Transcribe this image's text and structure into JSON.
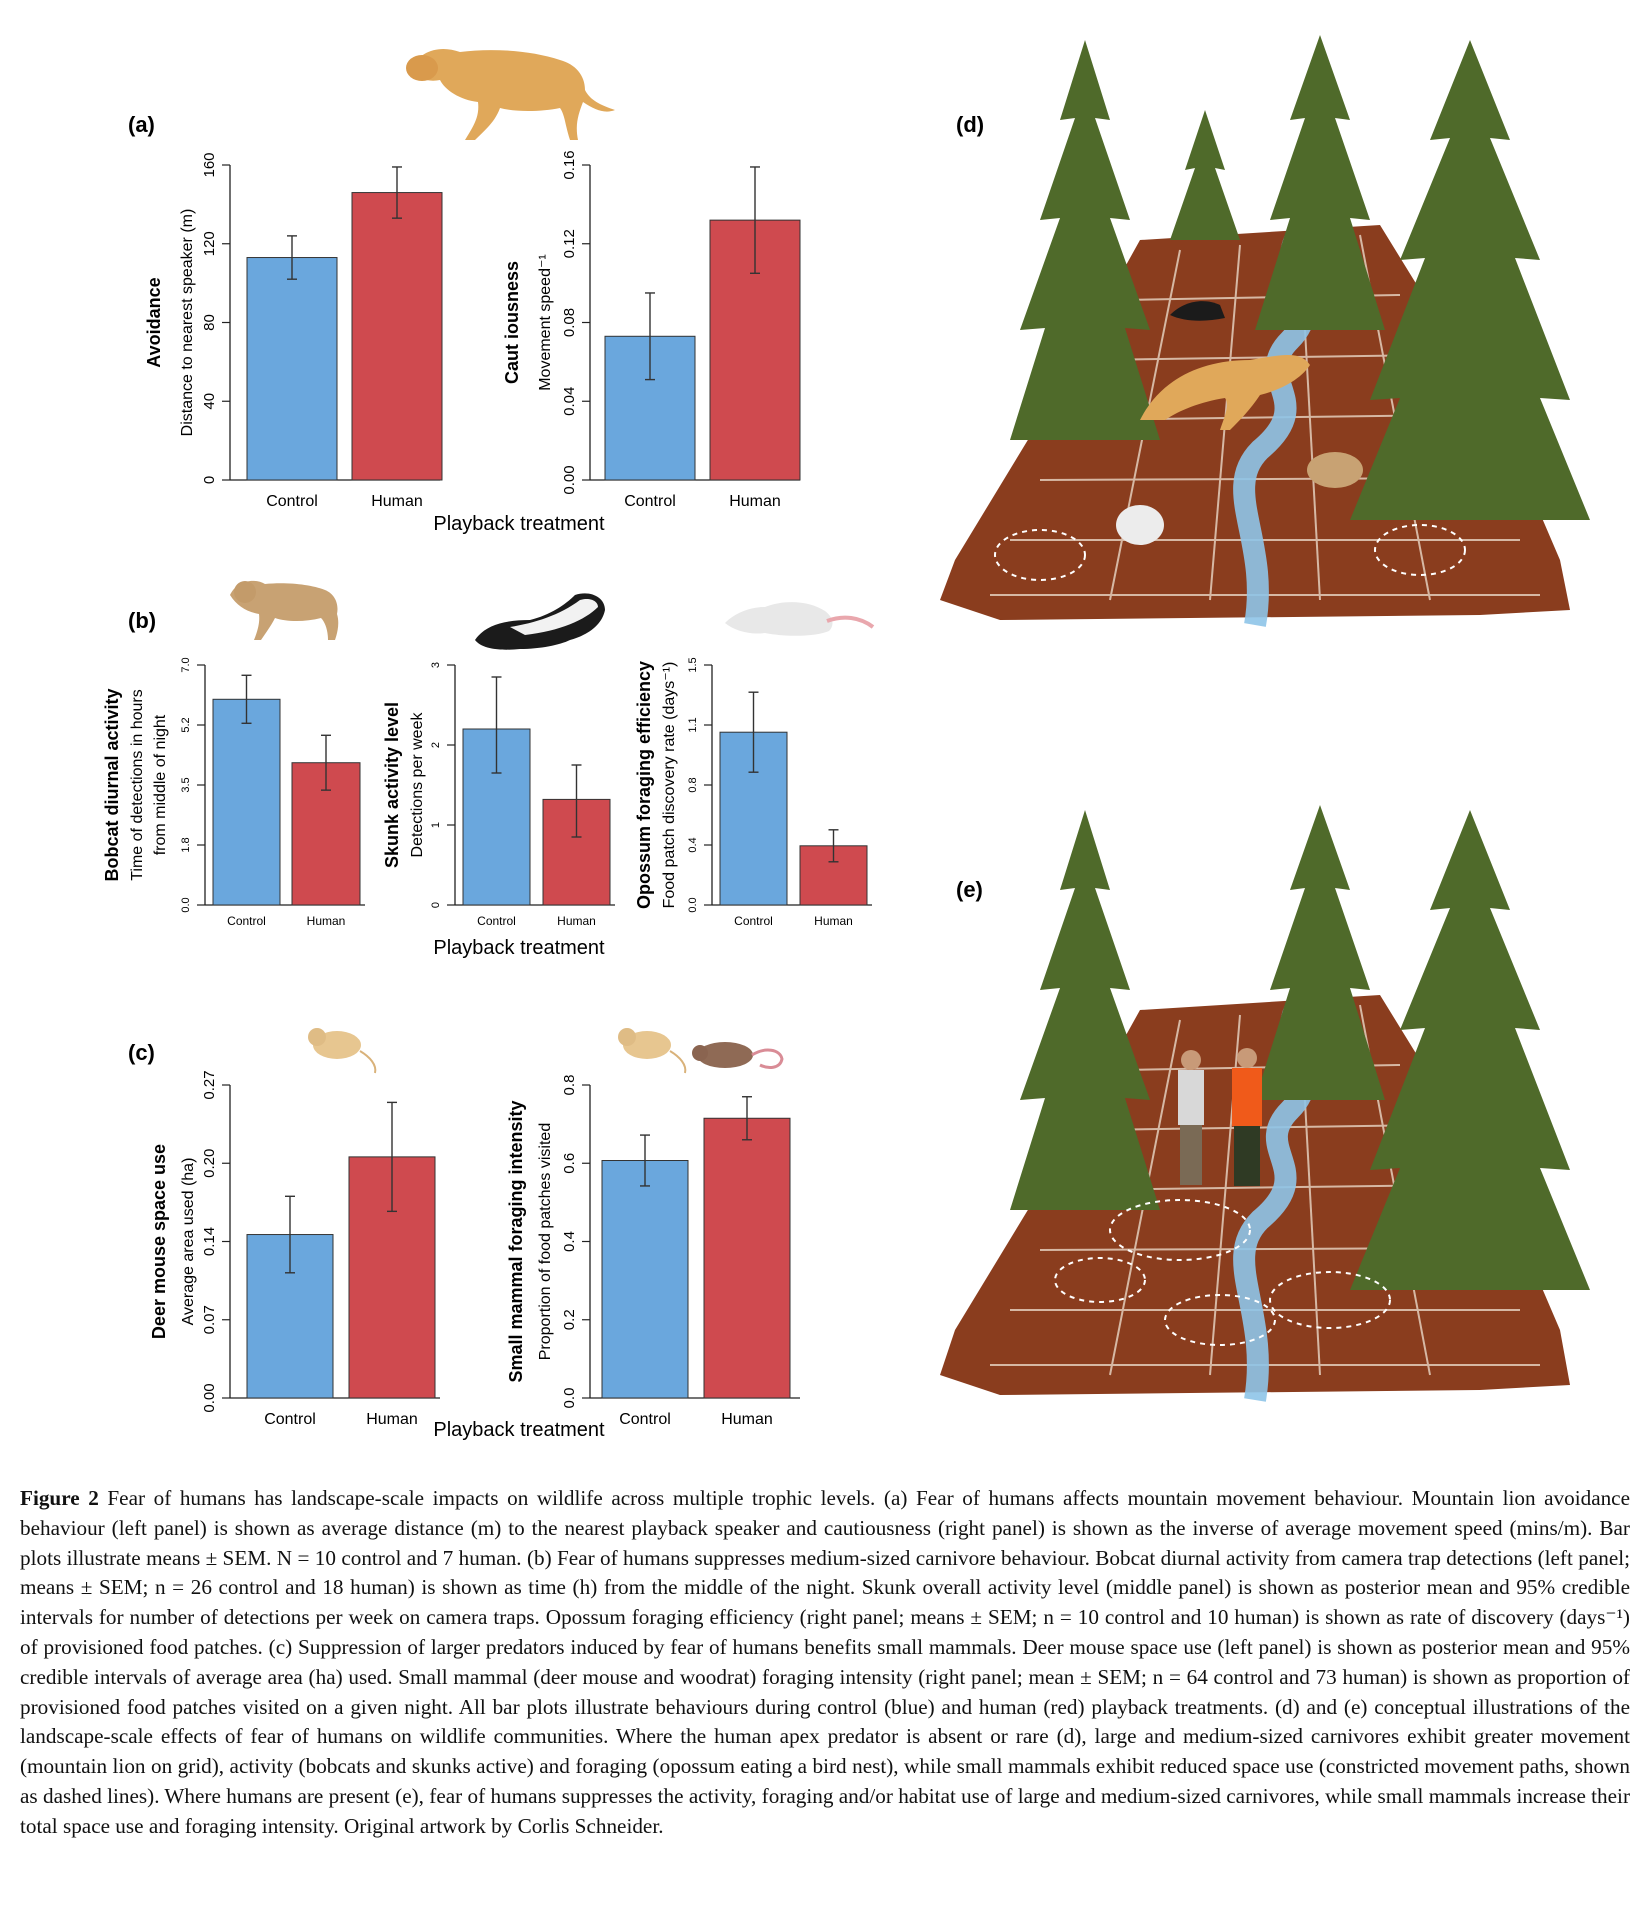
{
  "figure": {
    "panels": {
      "a": "(a)",
      "b": "(b)",
      "c": "(c)",
      "d": "(d)",
      "e": "(e)"
    },
    "xlabel": "Playback treatment",
    "colors": {
      "control": "#6aa7dd",
      "human": "#cf4a4f",
      "soil": "#8a3d1e",
      "tree": "#4f6a2a",
      "stream": "#8ec4e8"
    },
    "icons": [
      "mountain-lion-icon",
      "bobcat-icon",
      "skunk-icon",
      "opossum-icon",
      "deer-mouse-icon",
      "woodrat-icon"
    ]
  },
  "chart_data": [
    {
      "id": "a-left",
      "type": "bar",
      "categories": [
        "Control",
        "Human"
      ],
      "values": [
        113,
        146
      ],
      "errors": [
        11,
        13
      ],
      "ylabel_bold": "Avoidance",
      "ylabel": "Distance to nearest speaker (m)",
      "ylim": [
        0,
        160
      ],
      "yticks": [
        "0",
        "40",
        "80",
        "120",
        "160"
      ],
      "ytick_values": [
        0,
        40,
        80,
        120,
        160
      ]
    },
    {
      "id": "a-right",
      "type": "bar",
      "categories": [
        "Control",
        "Human"
      ],
      "values": [
        0.073,
        0.132
      ],
      "errors": [
        0.022,
        0.027
      ],
      "ylabel_bold": "Caut iousness",
      "ylabel": "Movement speed⁻¹",
      "ylim": [
        0,
        0.16
      ],
      "yticks": [
        "0.00",
        "0.04",
        "0.08",
        "0.12",
        "0.16"
      ],
      "ytick_values": [
        0,
        0.04,
        0.08,
        0.12,
        0.16
      ]
    },
    {
      "id": "b-left",
      "type": "bar",
      "categories": [
        "Control",
        "Human"
      ],
      "values": [
        6.0,
        4.15
      ],
      "errors": [
        0.7,
        0.8
      ],
      "ylabel_bold": "Bobcat diurnal activity",
      "ylabel": "Time of detections in hours",
      "ylabel2": "from middle of night",
      "ylim": [
        0,
        7.0
      ],
      "yticks": [
        "0.0",
        "1.8",
        "3.5",
        "5.2",
        "7.0"
      ],
      "ytick_values": [
        0,
        1.75,
        3.5,
        5.25,
        7.0
      ]
    },
    {
      "id": "b-middle",
      "type": "bar",
      "categories": [
        "Control",
        "Human"
      ],
      "values": [
        2.2,
        1.32
      ],
      "errors_low": [
        0.55,
        0.47
      ],
      "errors_high": [
        0.65,
        0.43
      ],
      "ylabel_bold": "Skunk activity level",
      "ylabel": "Detections per week",
      "ylim": [
        0,
        3
      ],
      "yticks": [
        "0",
        "1",
        "2",
        "3"
      ],
      "ytick_values": [
        0,
        1,
        2,
        3
      ]
    },
    {
      "id": "b-right",
      "type": "bar",
      "categories": [
        "Control",
        "Human"
      ],
      "values": [
        1.08,
        0.37
      ],
      "errors": [
        0.25,
        0.1
      ],
      "ylabel_bold": "Opossum foraging efficiency",
      "ylabel": "Food patch discovery rate (days⁻¹)",
      "ylim": [
        0,
        1.5
      ],
      "yticks": [
        "0.0",
        "0.4",
        "0.8",
        "1.1",
        "1.5"
      ],
      "ytick_values": [
        0,
        0.375,
        0.75,
        1.125,
        1.5
      ]
    },
    {
      "id": "c-left",
      "type": "bar",
      "categories": [
        "Control",
        "Human"
      ],
      "values": [
        0.141,
        0.208
      ],
      "errors": [
        0.033,
        0.047
      ],
      "ylabel_bold": "Deer mouse space use",
      "ylabel": "Average area used (ha)",
      "ylim": [
        0,
        0.27
      ],
      "yticks": [
        "0.00",
        "0.07",
        "0.14",
        "0.20",
        "0.27"
      ],
      "ytick_values": [
        0,
        0.0675,
        0.135,
        0.2025,
        0.27
      ]
    },
    {
      "id": "c-right",
      "type": "bar",
      "categories": [
        "Control",
        "Human"
      ],
      "values": [
        0.607,
        0.715
      ],
      "errors": [
        0.065,
        0.055
      ],
      "ylabel_bold": "Small mammal foraging intensity",
      "ylabel": "Proportion of food patches visited",
      "ylim": [
        0,
        0.8
      ],
      "yticks": [
        "0.0",
        "0.2",
        "0.4",
        "0.6",
        "0.8"
      ],
      "ytick_values": [
        0,
        0.2,
        0.4,
        0.6,
        0.8
      ]
    }
  ],
  "caption": {
    "label": "Figure 2",
    "text": " Fear of humans has landscape-scale impacts on wildlife across multiple trophic levels. (a) Fear of humans affects mountain movement behaviour. Mountain lion avoidance behaviour (left panel) is shown as average distance (m) to the nearest playback speaker and cautiousness (right panel) is shown as the inverse of average movement speed (mins/m). Bar plots illustrate means ± SEM. N = 10 control and 7 human. (b) Fear of humans suppresses medium-sized carnivore behaviour. Bobcat diurnal activity from camera trap detections (left panel; means ± SEM; n = 26 control and 18 human) is shown as time (h) from the middle of the night. Skunk overall activity level (middle panel) is shown as posterior mean and 95% credible intervals for number of detections per week on camera traps. Opossum foraging efficiency (right panel; means ± SEM; n = 10 control and 10 human) is shown as rate of discovery (days⁻¹) of provisioned food patches. (c) Suppression of larger predators induced by fear of humans benefits small mammals. Deer mouse space use (left panel) is shown as posterior mean and 95% credible intervals of average area (ha) used. Small mammal (deer mouse and woodrat) foraging intensity (right panel; mean ± SEM; n = 64 control and 73 human) is shown as proportion of provisioned food patches visited on a given night. All bar plots illustrate behaviours during control (blue) and human (red) playback treatments. (d) and (e) conceptual illustrations of the landscape-scale effects of fear of humans on wildlife communities. Where the human apex predator is absent or rare (d), large and medium-sized carnivores exhibit greater movement (mountain lion on grid), activity (bobcats and skunks active) and foraging (opossum eating a bird nest), while small mammals exhibit reduced space use (constricted movement paths, shown as dashed lines). Where humans are present (e), fear of humans suppresses the activity, foraging and/or habitat use of large and medium-sized carnivores, while small mammals increase their total space use and foraging intensity. Original artwork by Corlis Schneider."
  }
}
